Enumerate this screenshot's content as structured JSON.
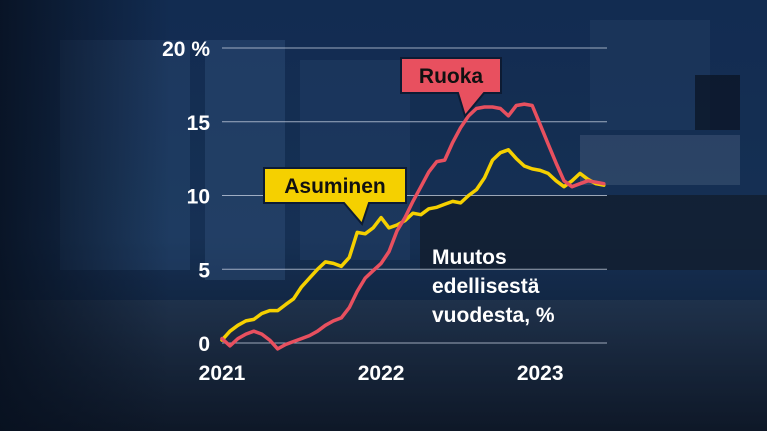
{
  "colors": {
    "background": "#0d1b33",
    "asuminen": "#f5d000",
    "ruoka": "#e8505f",
    "text": "#ffffff",
    "grid": "#c9d3e3"
  },
  "chart_data": {
    "type": "line",
    "title": "",
    "xlabel": "",
    "ylabel": "",
    "annotation": "Muutos edellisestä vuodesta, %",
    "annotation_lines": [
      "Muutos",
      "edellisestä",
      "vuodesta, %"
    ],
    "ylim": [
      0,
      20
    ],
    "yticks": [
      0,
      5,
      10,
      15,
      20
    ],
    "ytick_labels": [
      "0",
      "5",
      "10",
      "15",
      "20 %"
    ],
    "xlim": [
      2021.0,
      2023.42
    ],
    "xticks": [
      2021,
      2022,
      2023
    ],
    "xtick_labels": [
      "2021",
      "2022",
      "2023"
    ],
    "grid": true,
    "series": [
      {
        "name": "Asuminen",
        "x": [
          2021.0,
          2021.05,
          2021.1,
          2021.15,
          2021.2,
          2021.25,
          2021.3,
          2021.35,
          2021.4,
          2021.45,
          2021.5,
          2021.55,
          2021.6,
          2021.65,
          2021.7,
          2021.75,
          2021.8,
          2021.85,
          2021.9,
          2021.95,
          2022.0,
          2022.05,
          2022.1,
          2022.15,
          2022.2,
          2022.25,
          2022.3,
          2022.35,
          2022.4,
          2022.45,
          2022.5,
          2022.55,
          2022.6,
          2022.65,
          2022.7,
          2022.75,
          2022.8,
          2022.85,
          2022.9,
          2022.95,
          2023.0,
          2023.05,
          2023.1,
          2023.15,
          2023.2,
          2023.25,
          2023.3,
          2023.35,
          2023.4
        ],
        "values": [
          0.2,
          0.8,
          1.2,
          1.5,
          1.6,
          2.0,
          2.2,
          2.2,
          2.6,
          3.0,
          3.8,
          4.4,
          5.0,
          5.5,
          5.4,
          5.2,
          5.8,
          7.5,
          7.4,
          7.8,
          8.5,
          7.8,
          8.0,
          8.3,
          8.8,
          8.7,
          9.1,
          9.2,
          9.4,
          9.6,
          9.5,
          10.0,
          10.4,
          11.2,
          12.4,
          12.9,
          13.1,
          12.5,
          12.0,
          11.8,
          11.7,
          11.5,
          11.0,
          10.6,
          11.0,
          11.5,
          11.1,
          10.8,
          10.7
        ]
      },
      {
        "name": "Ruoka",
        "x": [
          2021.0,
          2021.05,
          2021.1,
          2021.15,
          2021.2,
          2021.25,
          2021.3,
          2021.35,
          2021.4,
          2021.45,
          2021.5,
          2021.55,
          2021.6,
          2021.65,
          2021.7,
          2021.75,
          2021.8,
          2021.85,
          2021.9,
          2021.95,
          2022.0,
          2022.05,
          2022.1,
          2022.15,
          2022.2,
          2022.25,
          2022.3,
          2022.35,
          2022.4,
          2022.45,
          2022.5,
          2022.55,
          2022.6,
          2022.65,
          2022.7,
          2022.75,
          2022.8,
          2022.85,
          2022.9,
          2022.95,
          2023.0,
          2023.05,
          2023.1,
          2023.15,
          2023.2,
          2023.25,
          2023.3,
          2023.35,
          2023.4
        ],
        "values": [
          0.3,
          -0.2,
          0.3,
          0.6,
          0.8,
          0.6,
          0.2,
          -0.4,
          -0.1,
          0.1,
          0.3,
          0.5,
          0.8,
          1.2,
          1.5,
          1.7,
          2.4,
          3.5,
          4.4,
          4.9,
          5.4,
          6.2,
          7.6,
          8.5,
          9.6,
          10.6,
          11.6,
          12.3,
          12.4,
          13.6,
          14.6,
          15.4,
          15.9,
          16.0,
          16.0,
          15.9,
          15.4,
          16.1,
          16.2,
          16.1,
          14.8,
          13.5,
          12.2,
          11.0,
          10.6,
          10.8,
          11.0,
          10.9,
          10.8
        ]
      }
    ],
    "callouts": [
      {
        "series": "Asuminen",
        "label": "Asuminen"
      },
      {
        "series": "Ruoka",
        "label": "Ruoka"
      }
    ]
  }
}
